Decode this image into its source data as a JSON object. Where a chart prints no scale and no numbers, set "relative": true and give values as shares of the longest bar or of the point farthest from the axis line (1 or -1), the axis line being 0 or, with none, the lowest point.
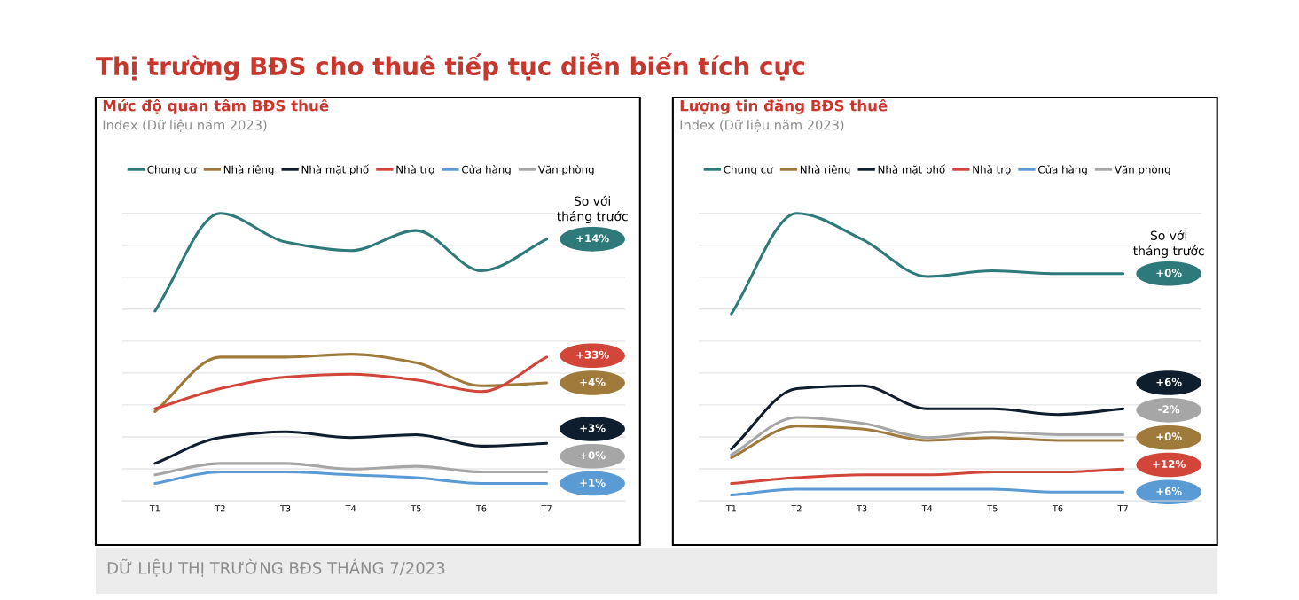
{
  "chart_data": [
    {
      "type": "line",
      "title": "Mức độ quan tâm BĐS thuê",
      "subtitle": "Index (Dữ liệu năm 2023)",
      "relative": true,
      "grid": "y",
      "legend": "top",
      "annotations": [
        "Thị trường BĐS cho thuê tiếp tục diễn biến tích cực",
        "DỮ LIỆU THỊ TRƯỜNG BĐS THÁNG 7/2023",
        "So với tháng trước",
        "+14%",
        "+4%",
        "+3%",
        "+33%",
        "+1%",
        "+0%"
      ],
      "categories": [
        "T1",
        "T2",
        "T3",
        "T4",
        "T5",
        "T6",
        "T7"
      ],
      "series": [
        {
          "name": "Chung cư",
          "color": "#2e7a7a",
          "values": [
            0.66,
            1,
            0.9,
            0.87,
            0.94,
            0.8,
            0.91
          ]
        },
        {
          "name": "Nhà riêng",
          "color": "#a07a3a",
          "values": [
            0.31,
            0.5,
            0.5,
            0.51,
            0.48,
            0.4,
            0.41
          ]
        },
        {
          "name": "Nhà mặt phố",
          "color": "#0f1e2e",
          "values": [
            0.13,
            0.22,
            0.24,
            0.22,
            0.23,
            0.19,
            0.2
          ]
        },
        {
          "name": "Nhà trọ",
          "color": "#d2463a",
          "values": [
            0.32,
            0.39,
            0.43,
            0.44,
            0.42,
            0.38,
            0.5
          ]
        },
        {
          "name": "Cửa hàng",
          "color": "#5b9bd5",
          "values": [
            0.06,
            0.1,
            0.1,
            0.09,
            0.08,
            0.06,
            0.06
          ]
        },
        {
          "name": "Văn phòng",
          "color": "#a6a6a6",
          "values": [
            0.09,
            0.13,
            0.13,
            0.11,
            0.12,
            0.1,
            0.1
          ]
        }
      ]
    },
    {
      "type": "line",
      "title": "Lượng tin đăng BĐS thuê",
      "subtitle": "Index (Dữ liệu năm 2023)",
      "relative": true,
      "grid": "y",
      "legend": "top",
      "annotations": [
        "So với tháng trước",
        "+0%",
        "+0%",
        "+6%",
        "+12%",
        "+6%",
        "-2%"
      ],
      "categories": [
        "T1",
        "T2",
        "T3",
        "T4",
        "T5",
        "T6",
        "T7"
      ],
      "series": [
        {
          "name": "Chung cư",
          "color": "#2e7a7a",
          "values": [
            0.65,
            1,
            0.91,
            0.78,
            0.8,
            0.79,
            0.79
          ]
        },
        {
          "name": "Nhà riêng",
          "color": "#a07a3a",
          "values": [
            0.15,
            0.26,
            0.25,
            0.21,
            0.22,
            0.21,
            0.21
          ]
        },
        {
          "name": "Nhà mặt phố",
          "color": "#0f1e2e",
          "values": [
            0.18,
            0.39,
            0.4,
            0.32,
            0.32,
            0.3,
            0.32
          ]
        },
        {
          "name": "Nhà trọ",
          "color": "#d2463a",
          "values": [
            0.06,
            0.08,
            0.09,
            0.09,
            0.1,
            0.1,
            0.11
          ]
        },
        {
          "name": "Cửa hàng",
          "color": "#5b9bd5",
          "values": [
            0.02,
            0.04,
            0.04,
            0.04,
            0.04,
            0.03,
            0.03
          ]
        },
        {
          "name": "Văn phòng",
          "color": "#a6a6a6",
          "values": [
            0.16,
            0.29,
            0.27,
            0.22,
            0.24,
            0.23,
            0.23
          ]
        }
      ]
    }
  ]
}
